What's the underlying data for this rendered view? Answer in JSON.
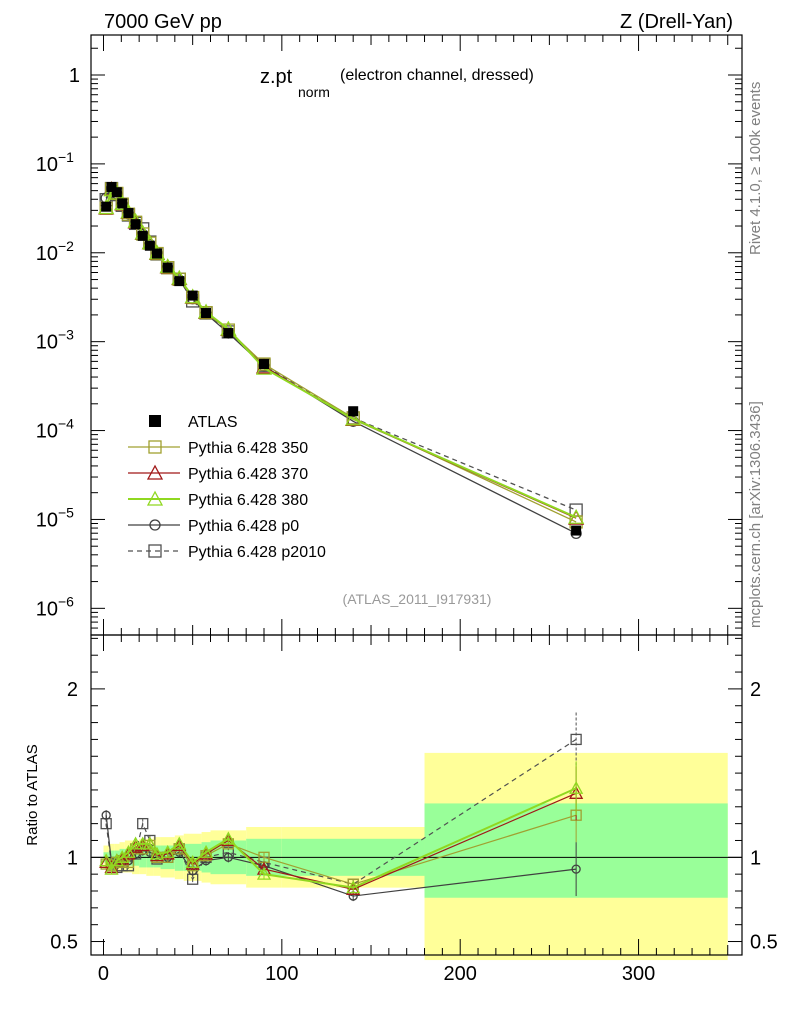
{
  "header": {
    "left": "7000 GeV pp",
    "right": "Z (Drell-Yan)"
  },
  "side_labels": {
    "rivet": "Rivet 4.1.0, ≥ 100k events",
    "mcplots": "mcplots.cern.ch [arXiv:1306.3436]"
  },
  "chart_data": {
    "type": "scatter",
    "title_main": "z.pt",
    "title_sub": "norm",
    "title_note": "(electron channel, dressed)",
    "analysis_id": "(ATLAS_2011_I917931)",
    "xlim": [
      -7,
      358
    ],
    "x_ticks": [
      {
        "v": 0,
        "label": "0"
      },
      {
        "v": 100,
        "label": "100"
      },
      {
        "v": 200,
        "label": "200"
      },
      {
        "v": 300,
        "label": "300"
      }
    ],
    "main": {
      "yscale": "log",
      "ylim_exp": [
        -6.3,
        0.45
      ],
      "y_ticks": [
        {
          "exp": 0,
          "base": "1",
          "sup": ""
        },
        {
          "exp": -1,
          "base": "10",
          "sup": "−1"
        },
        {
          "exp": -2,
          "base": "10",
          "sup": "−2"
        },
        {
          "exp": -3,
          "base": "10",
          "sup": "−3"
        },
        {
          "exp": -4,
          "base": "10",
          "sup": "−4"
        },
        {
          "exp": -5,
          "base": "10",
          "sup": "−5"
        },
        {
          "exp": -6,
          "base": "10",
          "sup": "−6"
        }
      ]
    },
    "ratio": {
      "ylabel": "Ratio to ATLAS",
      "ylim": [
        0.42,
        2.32
      ],
      "y_ticks": [
        {
          "v": 0.5,
          "label": "0.5"
        },
        {
          "v": 1,
          "label": "1"
        },
        {
          "v": 2,
          "label": "2"
        }
      ]
    },
    "x": [
      1.5,
      4.5,
      7.5,
      10.5,
      14,
      18,
      22,
      26,
      30,
      36,
      42.5,
      50,
      57.5,
      70,
      90,
      140,
      265
    ],
    "x_bins": [
      [
        0,
        3
      ],
      [
        3,
        6
      ],
      [
        6,
        9
      ],
      [
        9,
        12
      ],
      [
        12,
        16
      ],
      [
        16,
        20
      ],
      [
        20,
        24
      ],
      [
        24,
        28
      ],
      [
        28,
        32
      ],
      [
        32,
        40
      ],
      [
        40,
        45
      ],
      [
        45,
        55
      ],
      [
        55,
        60
      ],
      [
        60,
        80
      ],
      [
        80,
        100
      ],
      [
        100,
        180
      ],
      [
        180,
        350
      ]
    ],
    "band_yellow": [
      [
        0.93,
        1.07
      ],
      [
        0.92,
        1.08
      ],
      [
        0.92,
        1.08
      ],
      [
        0.91,
        1.09
      ],
      [
        0.91,
        1.1
      ],
      [
        0.9,
        1.1
      ],
      [
        0.9,
        1.11
      ],
      [
        0.89,
        1.11
      ],
      [
        0.89,
        1.12
      ],
      [
        0.88,
        1.12
      ],
      [
        0.87,
        1.13
      ],
      [
        0.86,
        1.14
      ],
      [
        0.85,
        1.15
      ],
      [
        0.84,
        1.16
      ],
      [
        0.82,
        1.18
      ],
      [
        0.82,
        1.18
      ],
      [
        0.39,
        1.62
      ]
    ],
    "band_green": [
      [
        0.97,
        1.03
      ],
      [
        0.96,
        1.04
      ],
      [
        0.96,
        1.04
      ],
      [
        0.95,
        1.05
      ],
      [
        0.95,
        1.05
      ],
      [
        0.95,
        1.06
      ],
      [
        0.94,
        1.06
      ],
      [
        0.94,
        1.06
      ],
      [
        0.94,
        1.07
      ],
      [
        0.93,
        1.07
      ],
      [
        0.92,
        1.08
      ],
      [
        0.92,
        1.08
      ],
      [
        0.91,
        1.09
      ],
      [
        0.9,
        1.1
      ],
      [
        0.89,
        1.11
      ],
      [
        0.89,
        1.11
      ],
      [
        0.76,
        1.32
      ]
    ],
    "data": {
      "name": "ATLAS",
      "values": [
        0.033,
        0.055,
        0.048,
        0.036,
        0.028,
        0.021,
        0.0155,
        0.012,
        0.0098,
        0.0068,
        0.0048,
        0.0033,
        0.0021,
        0.00125,
        0.00056,
        0.000165,
        7.5e-06
      ]
    },
    "series": [
      {
        "name": "Pythia 6.428 350",
        "color": "#a0a030",
        "marker": "square",
        "dash": false,
        "ratio": [
          0.96,
          0.95,
          0.97,
          0.98,
          0.97,
          1.05,
          1.05,
          1.07,
          1.0,
          1.0,
          1.05,
          0.95,
          1.01,
          1.08,
          1.0,
          0.84,
          1.25
        ]
      },
      {
        "name": "Pythia 6.428 370",
        "color": "#a01818",
        "marker": "triangle",
        "dash": false,
        "ratio": [
          0.97,
          0.94,
          0.98,
          0.99,
          1.02,
          1.06,
          1.07,
          1.08,
          1.01,
          1.02,
          1.07,
          0.96,
          1.02,
          1.1,
          0.93,
          0.81,
          1.38
        ]
      },
      {
        "name": "Pythia 6.428 380",
        "color": "#90d820",
        "marker": "triangle",
        "dash": false,
        "ratio": [
          0.98,
          0.93,
          0.98,
          1.0,
          1.03,
          1.08,
          1.08,
          1.08,
          1.02,
          1.03,
          1.08,
          0.97,
          1.03,
          1.11,
          0.9,
          0.82,
          1.41
        ]
      },
      {
        "name": "Pythia 6.428 p0",
        "color": "#404040",
        "marker": "circle",
        "dash": false,
        "ratio": [
          1.25,
          0.97,
          0.96,
          0.97,
          0.98,
          1.02,
          1.04,
          1.03,
          1.01,
          1.0,
          1.03,
          0.92,
          0.98,
          1.0,
          0.95,
          0.77,
          0.93
        ]
      },
      {
        "name": "Pythia 6.428 p2010",
        "color": "#505050",
        "marker": "opensquare",
        "dash": true,
        "ratio": [
          1.2,
          0.96,
          0.94,
          0.95,
          0.95,
          1.02,
          1.2,
          1.1,
          0.99,
          1.0,
          1.05,
          0.87,
          1.0,
          1.03,
          0.97,
          0.84,
          1.7
        ]
      }
    ]
  }
}
